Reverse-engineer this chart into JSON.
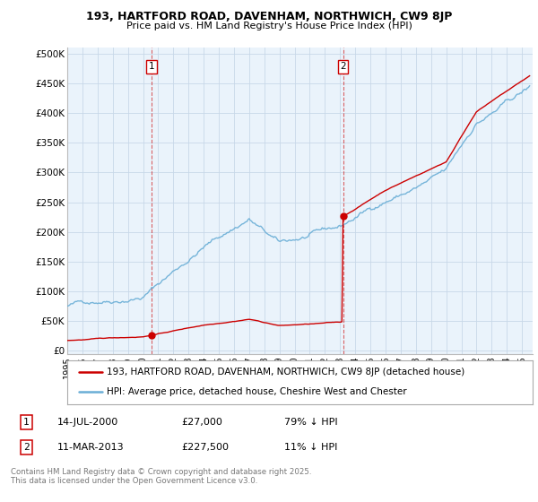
{
  "title1": "193, HARTFORD ROAD, DAVENHAM, NORTHWICH, CW9 8JP",
  "title2": "Price paid vs. HM Land Registry's House Price Index (HPI)",
  "ytick_values": [
    0,
    50000,
    100000,
    150000,
    200000,
    250000,
    300000,
    350000,
    400000,
    450000,
    500000
  ],
  "ylabel_ticks": [
    "£0",
    "£50K",
    "£100K",
    "£150K",
    "£200K",
    "£250K",
    "£300K",
    "£350K",
    "£400K",
    "£450K",
    "£500K"
  ],
  "sale1_year": 2000.54,
  "sale1_price": 27000,
  "sale2_year": 2013.19,
  "sale2_price": 227500,
  "hpi_color": "#6aaed6",
  "sale_color": "#cc0000",
  "vline_color": "#cc0000",
  "bg_color": "#eaf3fb",
  "outer_bg": "#ffffff",
  "grid_color": "#c8d8e8",
  "legend_label1": "193, HARTFORD ROAD, DAVENHAM, NORTHWICH, CW9 8JP (detached house)",
  "legend_label2": "HPI: Average price, detached house, Cheshire West and Chester",
  "note1_label": "1",
  "note1_date": "14-JUL-2000",
  "note1_price": "£27,000",
  "note1_hpi": "79% ↓ HPI",
  "note2_label": "2",
  "note2_date": "11-MAR-2013",
  "note2_price": "£227,500",
  "note2_hpi": "11% ↓ HPI",
  "footer": "Contains HM Land Registry data © Crown copyright and database right 2025.\nThis data is licensed under the Open Government Licence v3.0."
}
